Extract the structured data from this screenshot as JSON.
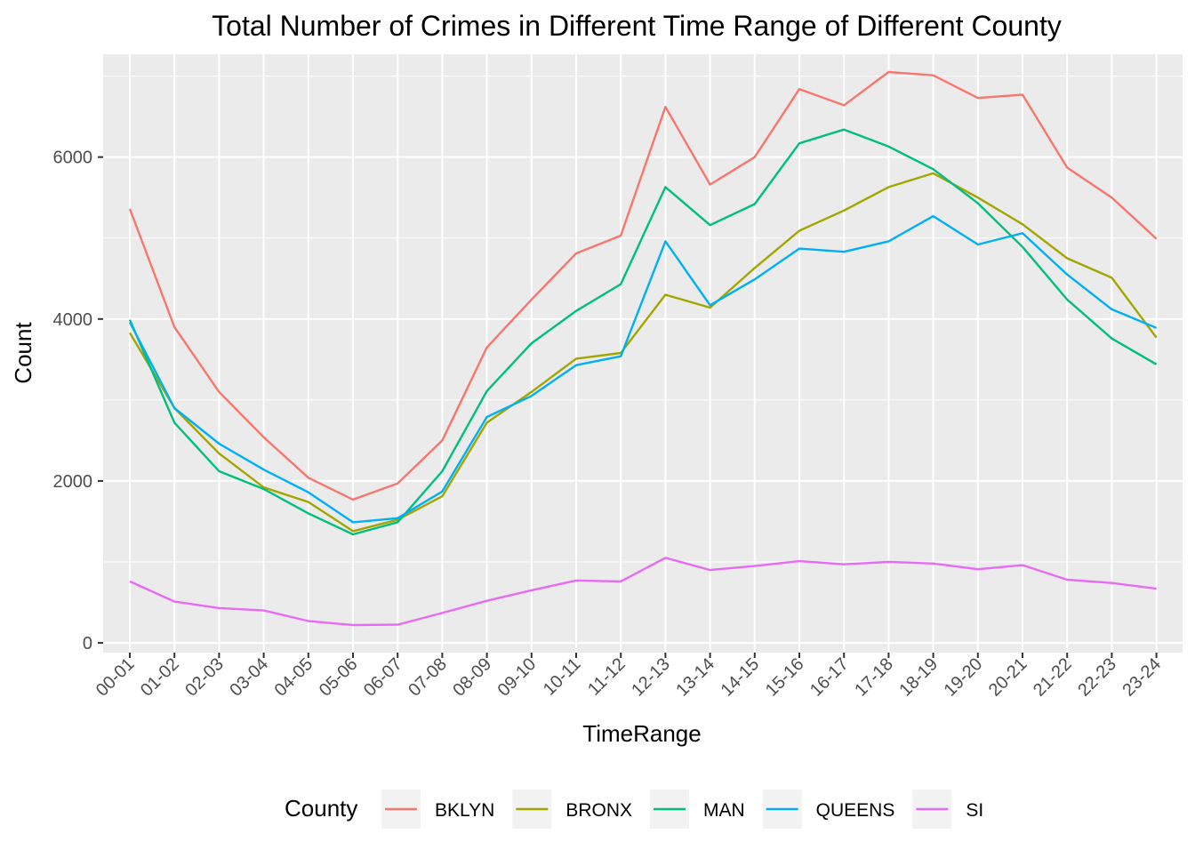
{
  "chart_data": {
    "type": "line",
    "title": "Total Number of Crimes in Different Time Range of Different County",
    "xlabel": "TimeRange",
    "ylabel": "Count",
    "ylim": [
      -120,
      7270
    ],
    "yticks": [
      0,
      2000,
      4000,
      6000
    ],
    "grid": true,
    "legend": {
      "title": "County",
      "placement": "bottom"
    },
    "categories": [
      "00-01",
      "01-02",
      "02-03",
      "03-04",
      "04-05",
      "05-06",
      "06-07",
      "07-08",
      "08-09",
      "09-10",
      "10-11",
      "11-12",
      "12-13",
      "13-14",
      "14-15",
      "15-16",
      "16-17",
      "17-18",
      "18-19",
      "19-20",
      "20-21",
      "21-22",
      "22-23",
      "23-24"
    ],
    "series": [
      {
        "name": "BKLYN",
        "color": "#F8766D",
        "values": [
          5360,
          3900,
          3100,
          2540,
          2040,
          1770,
          1970,
          2500,
          3650,
          4240,
          4810,
          5030,
          6620,
          5660,
          6000,
          6840,
          6640,
          7050,
          7010,
          6730,
          6770,
          5870,
          5500,
          4990
        ]
      },
      {
        "name": "BRONX",
        "color": "#A3A500",
        "values": [
          3830,
          2900,
          2340,
          1920,
          1740,
          1380,
          1520,
          1810,
          2720,
          3100,
          3510,
          3580,
          4300,
          4140,
          4630,
          5090,
          5340,
          5630,
          5800,
          5500,
          5170,
          4750,
          4510,
          3770
        ]
      },
      {
        "name": "MAN",
        "color": "#00BF7D",
        "values": [
          3990,
          2720,
          2120,
          1900,
          1600,
          1340,
          1490,
          2120,
          3110,
          3700,
          4100,
          4430,
          5630,
          5160,
          5420,
          6170,
          6340,
          6130,
          5850,
          5430,
          4890,
          4240,
          3760,
          3440
        ]
      },
      {
        "name": "QUEENS",
        "color": "#00B0F6",
        "values": [
          3960,
          2900,
          2460,
          2140,
          1860,
          1490,
          1540,
          1870,
          2790,
          3050,
          3430,
          3540,
          4960,
          4170,
          4490,
          4870,
          4830,
          4960,
          5270,
          4920,
          5060,
          4550,
          4120,
          3890
        ]
      },
      {
        "name": "SI",
        "color": "#E76BF3",
        "values": [
          760,
          510,
          430,
          400,
          270,
          220,
          225,
          370,
          520,
          650,
          770,
          760,
          1050,
          900,
          950,
          1010,
          970,
          1000,
          980,
          910,
          960,
          780,
          740,
          670
        ]
      }
    ]
  }
}
